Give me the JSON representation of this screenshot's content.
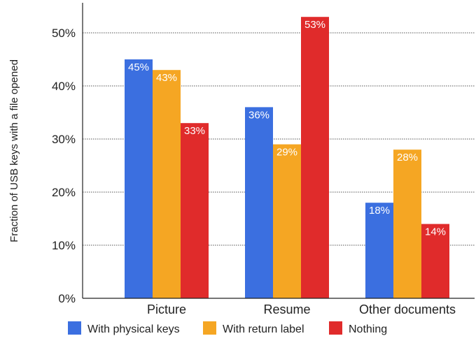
{
  "chart_data": {
    "type": "bar",
    "title": "",
    "xlabel": "",
    "ylabel": "Fraction of USB keys with a file opened",
    "ylim": [
      0,
      55
    ],
    "yticks": [
      0,
      10,
      20,
      30,
      40,
      50
    ],
    "ytick_labels": [
      "0%",
      "10%",
      "20%",
      "30%",
      "40%",
      "50%"
    ],
    "grid": true,
    "legend_position": "bottom",
    "categories": [
      "Picture",
      "Resume",
      "Other documents"
    ],
    "series": [
      {
        "name": "With physical keys",
        "color": "#3b6fe0",
        "values": [
          45,
          36,
          18
        ],
        "labels": [
          "45%",
          "36%",
          "18%"
        ]
      },
      {
        "name": "With return label",
        "color": "#f5a623",
        "values": [
          43,
          29,
          28
        ],
        "labels": [
          "43%",
          "29%",
          "28%"
        ]
      },
      {
        "name": "Nothing",
        "color": "#e02b2b",
        "values": [
          33,
          53,
          14
        ],
        "labels": [
          "33%",
          "53%",
          "14%"
        ]
      }
    ]
  }
}
